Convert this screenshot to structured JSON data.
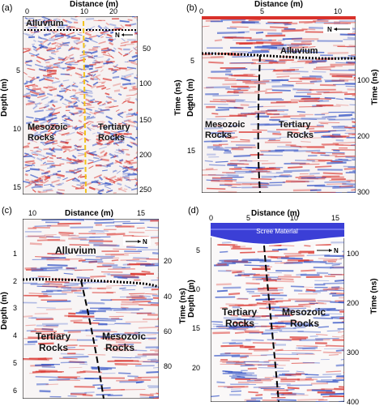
{
  "panels": [
    {
      "id": "a",
      "label": "(a)",
      "x_title": "Distance (m)",
      "x_ticks": [
        "0",
        "10",
        "20"
      ],
      "left_title": "Depth (m)",
      "left_ticks": [
        "5",
        "10",
        "15"
      ],
      "right_title": "Time (ns)",
      "right_ticks": [
        "50",
        "100",
        "150",
        "200",
        "250"
      ],
      "labels": [
        "Alluvium",
        "Mesozoic",
        "Rocks",
        "Tertiary",
        "Rocks"
      ],
      "north": "N"
    },
    {
      "id": "b",
      "label": "(b)",
      "x_title": "Distance (m)",
      "x_ticks": [
        "0",
        "5",
        "10"
      ],
      "left_title": "Depth (m)",
      "left_ticks": [
        "5",
        "10",
        "15"
      ],
      "right_title": "Time (ns)",
      "right_ticks": [
        "100",
        "200",
        "300"
      ],
      "labels": [
        "Alluvium",
        "Mesozoic",
        "Rocks",
        "Tertiary",
        "Rocks"
      ],
      "north": "N"
    },
    {
      "id": "c",
      "label": "(c)",
      "x_title": "Distance (m)",
      "x_ticks": [
        "10",
        "15"
      ],
      "left_title": "Depth (m)",
      "left_ticks": [
        "1",
        "2",
        "3",
        "4",
        "5",
        "6"
      ],
      "right_title": "Time (ns)",
      "right_ticks": [
        "20",
        "40",
        "60",
        "80"
      ],
      "labels": [
        "Alluvium",
        "Tertiary",
        "Rocks",
        "Mesozoic",
        "Rocks"
      ],
      "north": "N"
    },
    {
      "id": "d",
      "label": "(d)",
      "x_title": "Distance (m)",
      "x_ticks": [
        "0",
        "5",
        "10",
        "15"
      ],
      "left_title": "Depth (m)",
      "left_ticks": [
        "5",
        "10",
        "15",
        "20"
      ],
      "right_title": "Time (ns)",
      "right_ticks": [
        "100",
        "200",
        "300",
        "400"
      ],
      "labels": [
        "Scree Material",
        "Tertiary",
        "Rocks",
        "Mesozoic",
        "Rocks"
      ],
      "north": "N"
    }
  ],
  "colors": {
    "red": "#d9312b",
    "blue": "#2f4fc4",
    "fault": "#f2c21b",
    "scree": "#3b3fd6"
  }
}
